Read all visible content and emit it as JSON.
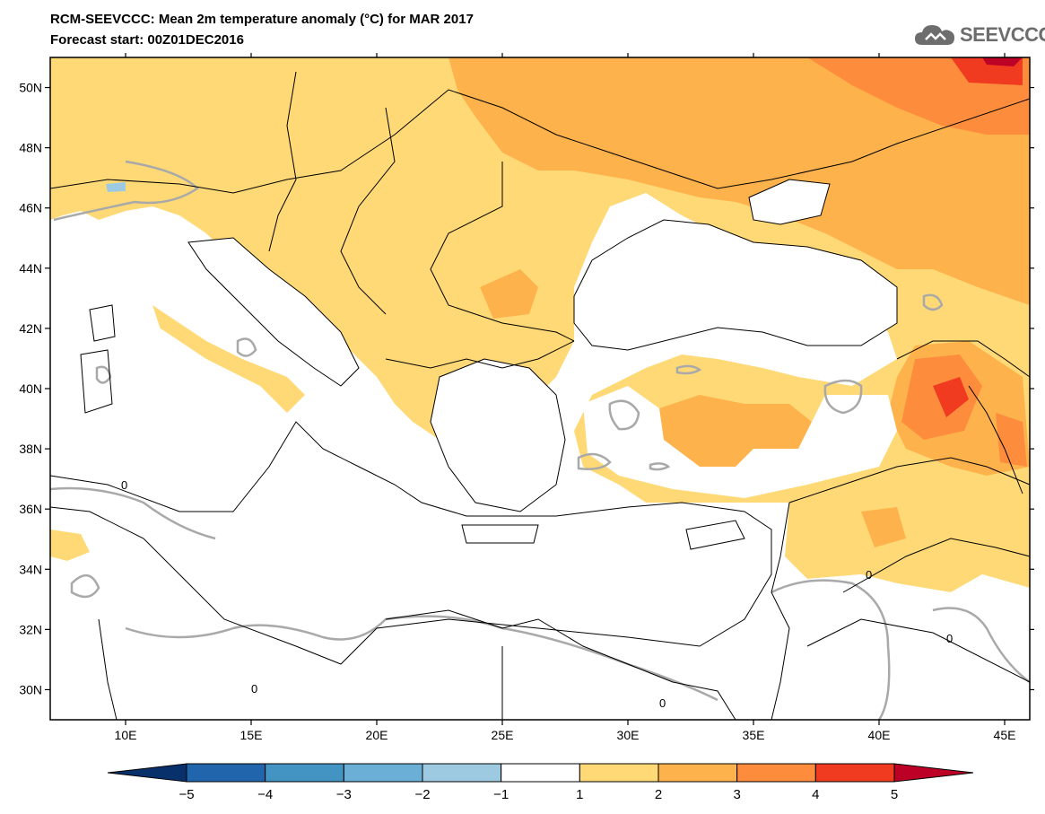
{
  "header": {
    "title": "RCM-SEEVCCC: Mean 2m temperature anomaly (°C) for MAR 2017",
    "subtitle": "Forecast start: 00Z01DEC2016"
  },
  "logo": {
    "text": "SEEVCCC",
    "icon": "cloud-icon"
  },
  "map": {
    "lon_range": [
      7,
      46
    ],
    "lat_range": [
      29,
      51
    ],
    "lat_ticks": [
      {
        "value": 50,
        "label": "50N"
      },
      {
        "value": 48,
        "label": "48N"
      },
      {
        "value": 46,
        "label": "46N"
      },
      {
        "value": 44,
        "label": "44N"
      },
      {
        "value": 42,
        "label": "42N"
      },
      {
        "value": 40,
        "label": "40N"
      },
      {
        "value": 38,
        "label": "38N"
      },
      {
        "value": 36,
        "label": "36N"
      },
      {
        "value": 34,
        "label": "34N"
      },
      {
        "value": 32,
        "label": "32N"
      },
      {
        "value": 30,
        "label": "30N"
      }
    ],
    "lon_ticks": [
      {
        "value": 10,
        "label": "10E"
      },
      {
        "value": 15,
        "label": "15E"
      },
      {
        "value": 20,
        "label": "20E"
      },
      {
        "value": 25,
        "label": "25E"
      },
      {
        "value": 30,
        "label": "30E"
      },
      {
        "value": 35,
        "label": "35E"
      },
      {
        "value": 40,
        "label": "40E"
      },
      {
        "value": 45,
        "label": "45E"
      }
    ],
    "contour_labels": [
      "0",
      "0",
      "0",
      "0",
      "0"
    ]
  },
  "colorbar": {
    "colors": [
      "#08306b",
      "#2166ac",
      "#4393c3",
      "#6baed6",
      "#9ecae1",
      "#ffffff",
      "#fed976",
      "#feb24c",
      "#fd8d3c",
      "#f03b20",
      "#bd0026"
    ],
    "labels": [
      "−5",
      "−4",
      "−3",
      "−2",
      "−1",
      "1",
      "2",
      "3",
      "4",
      "5"
    ]
  }
}
